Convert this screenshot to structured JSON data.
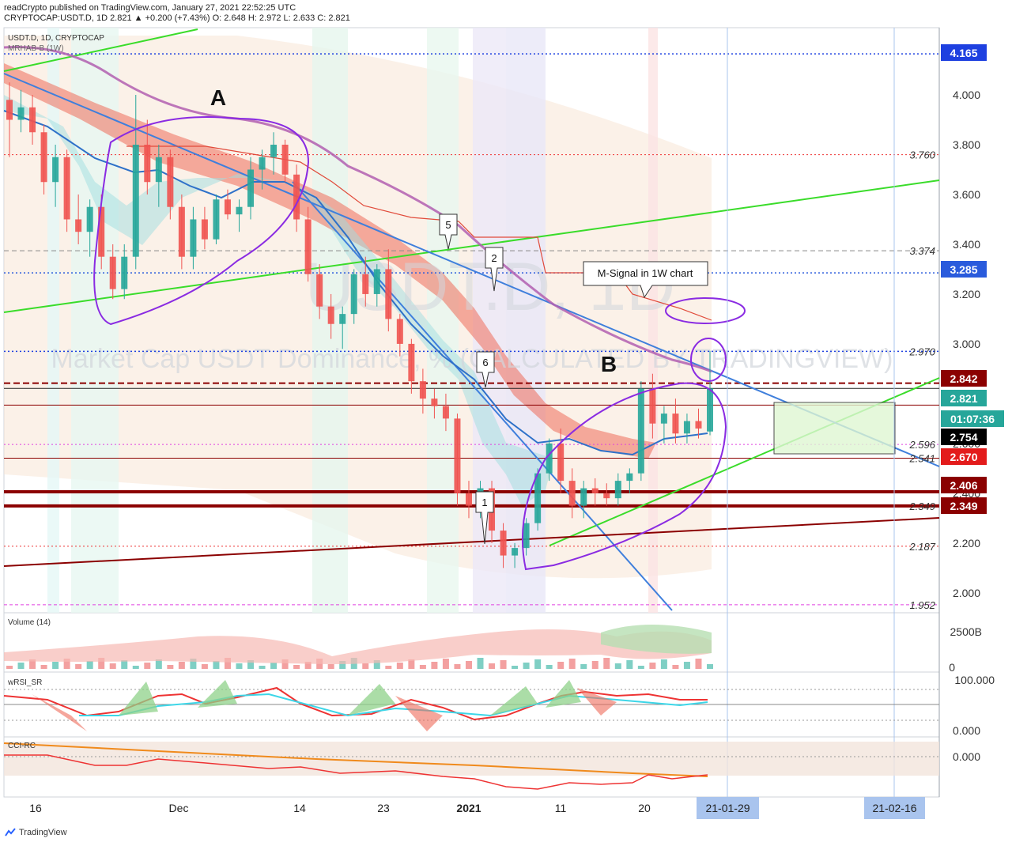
{
  "publisher": {
    "line1": "readCrypto published on TradingView.com, January 27, 2021 22:52:25 UTC",
    "line2": "CRYPTOCAP:USDT.D, 1D  2.821  ▲ +0.200 (+7.43%) O: 2.648  H: 2.972  L: 2.633  C: 2.821"
  },
  "chart_data": {
    "type": "candlestick",
    "symbol_label": "USDT.D, 1D, CRYPTOCAP",
    "indicator_label": "MRHAB-B (1W)",
    "watermark": "USDT.D, 1D",
    "watermark_sub": "Market Cap USDT Dominance, % (CALCULATED BY TRADINGVIEW)",
    "x_ticks": [
      "16",
      "Dec",
      "14",
      "23",
      "2021",
      "11",
      "20"
    ],
    "date_tags": [
      "21-01-29",
      "21-02-16"
    ],
    "y_ticks": [
      "4.000",
      "3.800",
      "3.600",
      "3.400",
      "3.200",
      "3.000",
      "2.800",
      "2.600",
      "2.400",
      "2.200",
      "2.000"
    ],
    "ylim": [
      1.92,
      4.27
    ],
    "price_tags": [
      {
        "value": "4.165",
        "color": "#1e40e0"
      },
      {
        "value": "3.285",
        "color": "#2a5bdc"
      },
      {
        "value": "2.842",
        "color": "#8b0000"
      },
      {
        "value": "2.821",
        "color": "#26a69a"
      },
      {
        "value": "01:07:36",
        "color": "#26a69a"
      },
      {
        "value": "2.754",
        "color": "#000000"
      },
      {
        "value": "2.670",
        "color": "#e31b1b"
      },
      {
        "value": "2.406",
        "color": "#8b0000"
      },
      {
        "value": "2.349",
        "color": "#8b0000"
      }
    ],
    "level_labels": [
      "3.760",
      "3.374",
      "2.970",
      "2.596",
      "2.541",
      "2.349",
      "2.187",
      "1.952"
    ],
    "annotations": {
      "A": "A",
      "B": "B",
      "callout_5": "5",
      "callout_2": "2",
      "callout_6": "6",
      "callout_1": "1",
      "msignal": "M-Signal in 1W chart"
    },
    "candles": [
      {
        "o": 3.98,
        "h": 4.05,
        "l": 3.75,
        "c": 3.9
      },
      {
        "o": 3.9,
        "h": 4.02,
        "l": 3.85,
        "c": 3.95
      },
      {
        "o": 3.95,
        "h": 4.0,
        "l": 3.8,
        "c": 3.85
      },
      {
        "o": 3.85,
        "h": 3.88,
        "l": 3.6,
        "c": 3.65
      },
      {
        "o": 3.65,
        "h": 3.8,
        "l": 3.55,
        "c": 3.75
      },
      {
        "o": 3.75,
        "h": 3.78,
        "l": 3.45,
        "c": 3.5
      },
      {
        "o": 3.5,
        "h": 3.6,
        "l": 3.4,
        "c": 3.45
      },
      {
        "o": 3.45,
        "h": 3.58,
        "l": 3.35,
        "c": 3.55
      },
      {
        "o": 3.55,
        "h": 3.6,
        "l": 3.3,
        "c": 3.35
      },
      {
        "o": 3.35,
        "h": 3.4,
        "l": 3.18,
        "c": 3.22
      },
      {
        "o": 3.22,
        "h": 3.4,
        "l": 3.18,
        "c": 3.35
      },
      {
        "o": 3.35,
        "h": 4.0,
        "l": 3.3,
        "c": 3.8
      },
      {
        "o": 3.8,
        "h": 3.9,
        "l": 3.6,
        "c": 3.65
      },
      {
        "o": 3.65,
        "h": 3.8,
        "l": 3.55,
        "c": 3.75
      },
      {
        "o": 3.75,
        "h": 3.78,
        "l": 3.5,
        "c": 3.55
      },
      {
        "o": 3.55,
        "h": 3.6,
        "l": 3.3,
        "c": 3.35
      },
      {
        "o": 3.35,
        "h": 3.55,
        "l": 3.3,
        "c": 3.5
      },
      {
        "o": 3.5,
        "h": 3.55,
        "l": 3.38,
        "c": 3.42
      },
      {
        "o": 3.42,
        "h": 3.6,
        "l": 3.4,
        "c": 3.58
      },
      {
        "o": 3.58,
        "h": 3.62,
        "l": 3.5,
        "c": 3.52
      },
      {
        "o": 3.52,
        "h": 3.58,
        "l": 3.45,
        "c": 3.55
      },
      {
        "o": 3.55,
        "h": 3.75,
        "l": 3.5,
        "c": 3.7
      },
      {
        "o": 3.7,
        "h": 3.78,
        "l": 3.62,
        "c": 3.75
      },
      {
        "o": 3.75,
        "h": 3.85,
        "l": 3.68,
        "c": 3.8
      },
      {
        "o": 3.8,
        "h": 3.82,
        "l": 3.65,
        "c": 3.68
      },
      {
        "o": 3.68,
        "h": 3.72,
        "l": 3.45,
        "c": 3.5
      },
      {
        "o": 3.5,
        "h": 3.55,
        "l": 3.25,
        "c": 3.28
      },
      {
        "o": 3.28,
        "h": 3.32,
        "l": 3.1,
        "c": 3.15
      },
      {
        "o": 3.15,
        "h": 3.2,
        "l": 3.02,
        "c": 3.08
      },
      {
        "o": 3.08,
        "h": 3.15,
        "l": 2.98,
        "c": 3.12
      },
      {
        "o": 3.12,
        "h": 3.3,
        "l": 3.08,
        "c": 3.28
      },
      {
        "o": 3.28,
        "h": 3.35,
        "l": 3.15,
        "c": 3.2
      },
      {
        "o": 3.2,
        "h": 3.32,
        "l": 3.15,
        "c": 3.3
      },
      {
        "o": 3.3,
        "h": 3.38,
        "l": 3.05,
        "c": 3.1
      },
      {
        "o": 3.1,
        "h": 3.12,
        "l": 2.95,
        "c": 3.0
      },
      {
        "o": 3.0,
        "h": 3.02,
        "l": 2.8,
        "c": 2.85
      },
      {
        "o": 2.85,
        "h": 2.9,
        "l": 2.72,
        "c": 2.78
      },
      {
        "o": 2.78,
        "h": 2.82,
        "l": 2.7,
        "c": 2.75
      },
      {
        "o": 2.75,
        "h": 2.8,
        "l": 2.65,
        "c": 2.7
      },
      {
        "o": 2.7,
        "h": 2.72,
        "l": 2.35,
        "c": 2.4
      },
      {
        "o": 2.4,
        "h": 2.45,
        "l": 2.3,
        "c": 2.35
      },
      {
        "o": 2.35,
        "h": 2.45,
        "l": 2.3,
        "c": 2.42
      },
      {
        "o": 2.42,
        "h": 2.45,
        "l": 2.2,
        "c": 2.25
      },
      {
        "o": 2.25,
        "h": 2.28,
        "l": 2.1,
        "c": 2.15
      },
      {
        "o": 2.15,
        "h": 2.2,
        "l": 2.1,
        "c": 2.18
      },
      {
        "o": 2.18,
        "h": 2.3,
        "l": 2.15,
        "c": 2.28
      },
      {
        "o": 2.28,
        "h": 2.5,
        "l": 2.25,
        "c": 2.48
      },
      {
        "o": 2.48,
        "h": 2.62,
        "l": 2.45,
        "c": 2.6
      },
      {
        "o": 2.6,
        "h": 2.66,
        "l": 2.4,
        "c": 2.45
      },
      {
        "o": 2.45,
        "h": 2.5,
        "l": 2.3,
        "c": 2.35
      },
      {
        "o": 2.35,
        "h": 2.45,
        "l": 2.3,
        "c": 2.42
      },
      {
        "o": 2.42,
        "h": 2.46,
        "l": 2.35,
        "c": 2.4
      },
      {
        "o": 2.4,
        "h": 2.44,
        "l": 2.35,
        "c": 2.38
      },
      {
        "o": 2.38,
        "h": 2.48,
        "l": 2.35,
        "c": 2.45
      },
      {
        "o": 2.45,
        "h": 2.5,
        "l": 2.4,
        "c": 2.48
      },
      {
        "o": 2.48,
        "h": 2.85,
        "l": 2.45,
        "c": 2.82
      },
      {
        "o": 2.82,
        "h": 2.88,
        "l": 2.62,
        "c": 2.68
      },
      {
        "o": 2.68,
        "h": 2.75,
        "l": 2.6,
        "c": 2.72
      },
      {
        "o": 2.72,
        "h": 2.78,
        "l": 2.6,
        "c": 2.64
      },
      {
        "o": 2.64,
        "h": 2.72,
        "l": 2.6,
        "c": 2.69
      },
      {
        "o": 2.69,
        "h": 2.74,
        "l": 2.62,
        "c": 2.66
      },
      {
        "o": 2.648,
        "h": 2.972,
        "l": 2.633,
        "c": 2.821
      }
    ],
    "volume": {
      "label": "Volume (14)",
      "y_ticks": [
        "2500B",
        "0"
      ]
    },
    "wrsi": {
      "label": "wRSI_SR",
      "y_ticks": [
        "100.000",
        "0.000"
      ]
    },
    "cci": {
      "label": "CCI-RC",
      "y_ticks": [
        "0.000"
      ]
    },
    "colors": {
      "up": "#26a69a",
      "down": "#ef5350",
      "trend_blue": "#3f7fdc",
      "trend_green": "#3adc2a",
      "resistance_red": "#8b0000",
      "circle_purple": "#8a2be2"
    }
  },
  "footer": {
    "brand": "TradingView"
  }
}
